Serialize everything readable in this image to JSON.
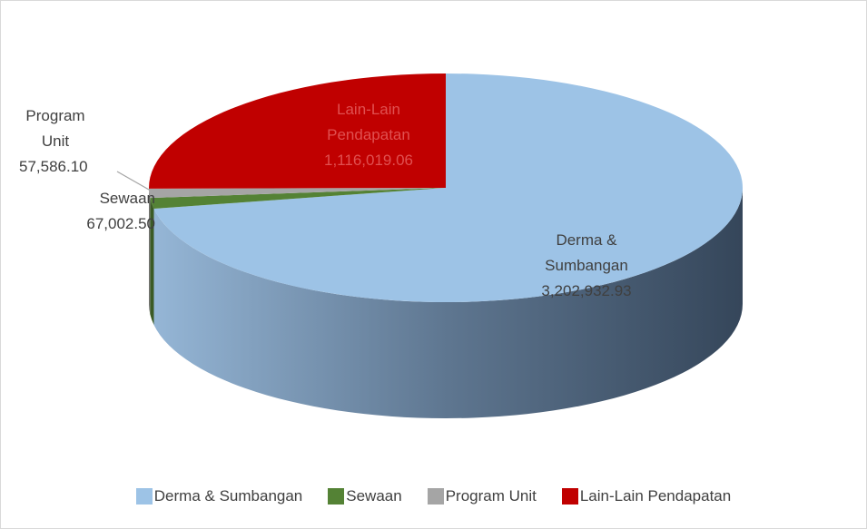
{
  "chart_data": {
    "type": "pie",
    "categories": [
      "Derma & Sumbangan",
      "Sewaan",
      "Program Unit",
      "Lain-Lain Pendapatan"
    ],
    "values": [
      3202932.93,
      67002.5,
      57586.1,
      1116019.06
    ],
    "value_labels": [
      "3,202,932.93",
      "67,002.50",
      "57,586.10",
      "1,116,019.06"
    ],
    "colors": [
      "#9dc3e6",
      "#548235",
      "#a5a5a5",
      "#c00000"
    ],
    "legend": "bottom"
  }
}
